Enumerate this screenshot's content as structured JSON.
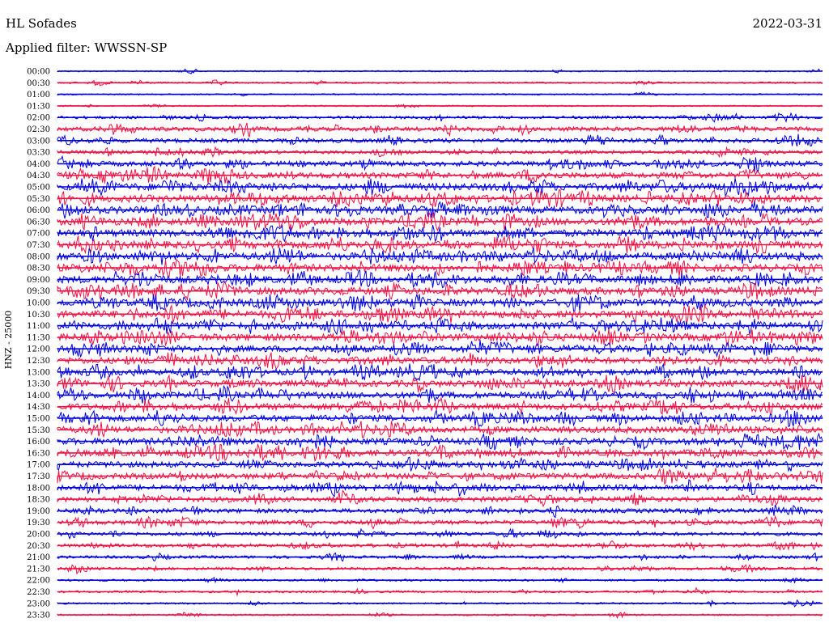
{
  "header": {
    "station": "HL Sofades",
    "date": "2022-03-31",
    "filter": "Applied filter: WWSSN-SP"
  },
  "chart_data": {
    "type": "line",
    "title": "HL Sofades",
    "subtitle": "Applied filter: WWSSN-SP",
    "ylabel": "HNZ - 25000",
    "xlabel": "",
    "grid": false,
    "colors": [
      "#0000dd",
      "#ee1144"
    ],
    "rows": [
      "00:00",
      "00:30",
      "01:00",
      "01:30",
      "02:00",
      "02:30",
      "03:00",
      "03:30",
      "04:00",
      "04:30",
      "05:00",
      "05:30",
      "06:00",
      "06:30",
      "07:00",
      "07:30",
      "08:00",
      "08:30",
      "09:00",
      "09:30",
      "10:00",
      "10:30",
      "11:00",
      "11:30",
      "12:00",
      "12:30",
      "13:00",
      "13:30",
      "14:00",
      "14:30",
      "15:00",
      "15:30",
      "16:00",
      "16:30",
      "17:00",
      "17:30",
      "18:00",
      "18:30",
      "19:00",
      "19:30",
      "20:00",
      "20:30",
      "21:00",
      "21:30",
      "22:00",
      "22:30",
      "23:00",
      "23:30"
    ],
    "activity": [
      1,
      1.5,
      1,
      1,
      3,
      5,
      5,
      4,
      6,
      7,
      9,
      9,
      9,
      9,
      9,
      9,
      9,
      9,
      9,
      9,
      9,
      9,
      9,
      9,
      8,
      8,
      8,
      8,
      8,
      8,
      8,
      8,
      8,
      8,
      7,
      7,
      7,
      6,
      5,
      5,
      4,
      4,
      3,
      3,
      2,
      2,
      1.5,
      1.5
    ]
  }
}
